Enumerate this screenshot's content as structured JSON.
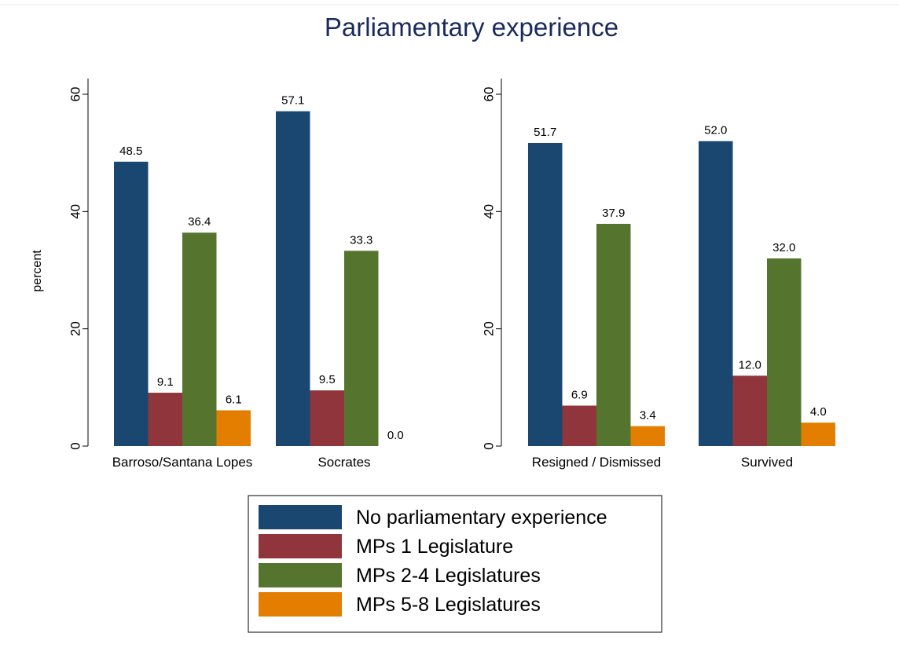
{
  "chart_data": {
    "type": "bar",
    "title": "Parliamentary experience",
    "ylabel": "percent",
    "ylim": [
      0,
      60
    ],
    "yticks": [
      0,
      20,
      40,
      60
    ],
    "grid": false,
    "legend_position": "bottom",
    "series_names": [
      "No parliamentary experience",
      "MPs 1 Legislature",
      "MPs 2-4 Legislatures",
      "MPs 5-8 Legislatures"
    ],
    "colors": [
      "#1a476f",
      "#90353b",
      "#55752f",
      "#e37e00"
    ],
    "panels": [
      {
        "categories": [
          "Barroso/Santana Lopes",
          "Socrates"
        ],
        "values": [
          [
            48.5,
            9.1,
            36.4,
            6.1
          ],
          [
            57.1,
            9.5,
            33.3,
            0.0
          ]
        ]
      },
      {
        "categories": [
          "Resigned / Dismissed",
          "Survived"
        ],
        "values": [
          [
            51.7,
            6.9,
            37.9,
            3.4
          ],
          [
            52.0,
            12.0,
            32.0,
            4.0
          ]
        ]
      }
    ]
  }
}
